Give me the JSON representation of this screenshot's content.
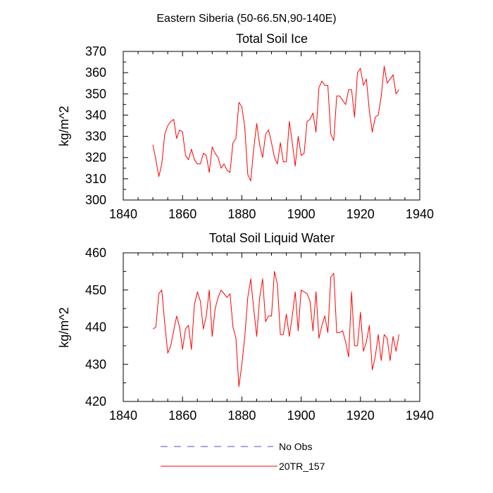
{
  "suptitle": "Eastern Siberia (50-66.5N,90-140E)",
  "chart_data": [
    {
      "type": "line",
      "title": "Total Soil Ice",
      "ylabel": "kg/m^2",
      "xlabel": "",
      "xlim": [
        1840,
        1940
      ],
      "ylim": [
        300,
        370
      ],
      "xticks": [
        1840,
        1860,
        1880,
        1900,
        1920,
        1940
      ],
      "yticks": [
        300,
        310,
        320,
        330,
        340,
        350,
        360,
        370
      ],
      "grid": false,
      "series": [
        {
          "name": "20TR_157",
          "color": "#ff0000",
          "x": [
            1850,
            1851,
            1852,
            1853,
            1854,
            1855,
            1856,
            1857,
            1858,
            1859,
            1860,
            1861,
            1862,
            1863,
            1864,
            1865,
            1866,
            1867,
            1868,
            1869,
            1870,
            1871,
            1872,
            1873,
            1874,
            1875,
            1876,
            1877,
            1878,
            1879,
            1880,
            1881,
            1882,
            1883,
            1884,
            1885,
            1886,
            1887,
            1888,
            1889,
            1890,
            1891,
            1892,
            1893,
            1894,
            1895,
            1896,
            1897,
            1898,
            1899,
            1900,
            1901,
            1902,
            1903,
            1904,
            1905,
            1906,
            1907,
            1908,
            1909,
            1910,
            1911,
            1912,
            1913,
            1914,
            1915,
            1916,
            1917,
            1918,
            1919,
            1920,
            1921,
            1922,
            1923,
            1924,
            1925,
            1926,
            1927,
            1928,
            1929,
            1930,
            1931,
            1932,
            1933
          ],
          "y": [
            326,
            319,
            311,
            317,
            331,
            335,
            337,
            338,
            329,
            333,
            332,
            321,
            319,
            324,
            319,
            317,
            317,
            322,
            321,
            313,
            325,
            322,
            320,
            315,
            317,
            314,
            313,
            327,
            329,
            346,
            344,
            334,
            312,
            309,
            324,
            336,
            326,
            320,
            331,
            333,
            327,
            320,
            317,
            327,
            318,
            318,
            337,
            327,
            316,
            330,
            321,
            322,
            337,
            338,
            341,
            332,
            353,
            356,
            354,
            354,
            331,
            328,
            349,
            349,
            347,
            345,
            352,
            352,
            339,
            360,
            362,
            354,
            357,
            342,
            332,
            339,
            340,
            349,
            363,
            355,
            357,
            359,
            350,
            352
          ]
        }
      ]
    },
    {
      "type": "line",
      "title": "Total Soil Liquid Water",
      "ylabel": "kg/m^2",
      "xlabel": "",
      "xlim": [
        1840,
        1940
      ],
      "ylim": [
        420,
        460
      ],
      "xticks": [
        1840,
        1860,
        1880,
        1900,
        1920,
        1940
      ],
      "yticks": [
        420,
        430,
        440,
        450,
        460
      ],
      "grid": false,
      "series": [
        {
          "name": "20TR_157",
          "color": "#ff0000",
          "x": [
            1850,
            1851,
            1852,
            1853,
            1854,
            1855,
            1856,
            1857,
            1858,
            1859,
            1860,
            1861,
            1862,
            1863,
            1864,
            1865,
            1866,
            1867,
            1868,
            1869,
            1870,
            1871,
            1872,
            1873,
            1874,
            1875,
            1876,
            1877,
            1878,
            1879,
            1880,
            1881,
            1882,
            1883,
            1884,
            1885,
            1886,
            1887,
            1888,
            1889,
            1890,
            1891,
            1892,
            1893,
            1894,
            1895,
            1896,
            1897,
            1898,
            1899,
            1900,
            1901,
            1902,
            1903,
            1904,
            1905,
            1906,
            1907,
            1908,
            1909,
            1910,
            1911,
            1912,
            1913,
            1914,
            1915,
            1916,
            1917,
            1918,
            1919,
            1920,
            1921,
            1922,
            1923,
            1924,
            1925,
            1926,
            1927,
            1928,
            1929,
            1930,
            1931,
            1932,
            1933
          ],
          "y": [
            439.5,
            440,
            449,
            450,
            441,
            433,
            435,
            439,
            443,
            440,
            434,
            439.5,
            440.5,
            434,
            446,
            449.5,
            447,
            439.5,
            443,
            450,
            437.5,
            445,
            448,
            450,
            449,
            448,
            449,
            440,
            437,
            424,
            430,
            437.5,
            448,
            453,
            445,
            437.5,
            448,
            453,
            441.5,
            443,
            443,
            455,
            451.5,
            438,
            438,
            443.5,
            437.5,
            443,
            449.5,
            439,
            450,
            449.5,
            449,
            447,
            439,
            449.5,
            437,
            440.5,
            443,
            438.5,
            453.5,
            454.5,
            438.5,
            438.5,
            439,
            436,
            432,
            449.5,
            435,
            435,
            444,
            433.5,
            436,
            440.5,
            428.5,
            432,
            438,
            431,
            438,
            437,
            431,
            437.5,
            433.5,
            438
          ]
        }
      ]
    }
  ],
  "legend": [
    {
      "label": "No Obs",
      "color": "#4e4ecc",
      "style": "dashed"
    },
    {
      "label": "20TR_157",
      "color": "#ff0000",
      "style": "solid"
    }
  ]
}
